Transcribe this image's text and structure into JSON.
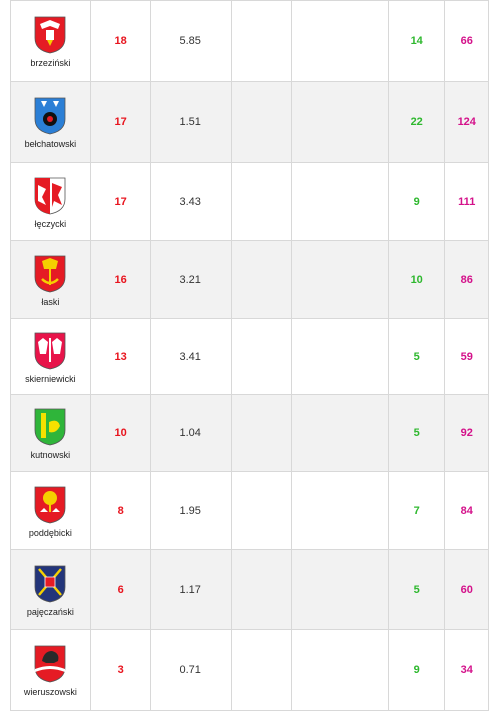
{
  "colors": {
    "red": "#e8141e",
    "green": "#2eb82e",
    "magenta": "#d4118a",
    "row_alt": "#f2f2f2",
    "border": "#d8d8d8"
  },
  "rows": [
    {
      "county": "brzeziński",
      "coat_icon": "brzeziny-coat-of-arms-icon",
      "v1": "18",
      "v2": "5.85",
      "v3": "14",
      "v4": "66"
    },
    {
      "county": "bełchatowski",
      "coat_icon": "belchatow-coat-of-arms-icon",
      "v1": "17",
      "v2": "1.51",
      "v3": "22",
      "v4": "124"
    },
    {
      "county": "łęczycki",
      "coat_icon": "leczyca-coat-of-arms-icon",
      "v1": "17",
      "v2": "3.43",
      "v3": "9",
      "v4": "111"
    },
    {
      "county": "łaski",
      "coat_icon": "lask-coat-of-arms-icon",
      "v1": "16",
      "v2": "3.21",
      "v3": "10",
      "v4": "86"
    },
    {
      "county": "skierniewicki",
      "coat_icon": "skierniewice-coat-of-arms-icon",
      "v1": "13",
      "v2": "3.41",
      "v3": "5",
      "v4": "59"
    },
    {
      "county": "kutnowski",
      "coat_icon": "kutno-coat-of-arms-icon",
      "v1": "10",
      "v2": "1.04",
      "v3": "5",
      "v4": "92"
    },
    {
      "county": "poddębicki",
      "coat_icon": "poddebice-coat-of-arms-icon",
      "v1": "8",
      "v2": "1.95",
      "v3": "7",
      "v4": "84"
    },
    {
      "county": "pajęczański",
      "coat_icon": "pajeczno-coat-of-arms-icon",
      "v1": "6",
      "v2": "1.17",
      "v3": "5",
      "v4": "60"
    },
    {
      "county": "wieruszowski",
      "coat_icon": "wieruszow-coat-of-arms-icon",
      "v1": "3",
      "v2": "0.71",
      "v3": "9",
      "v4": "34"
    }
  ]
}
